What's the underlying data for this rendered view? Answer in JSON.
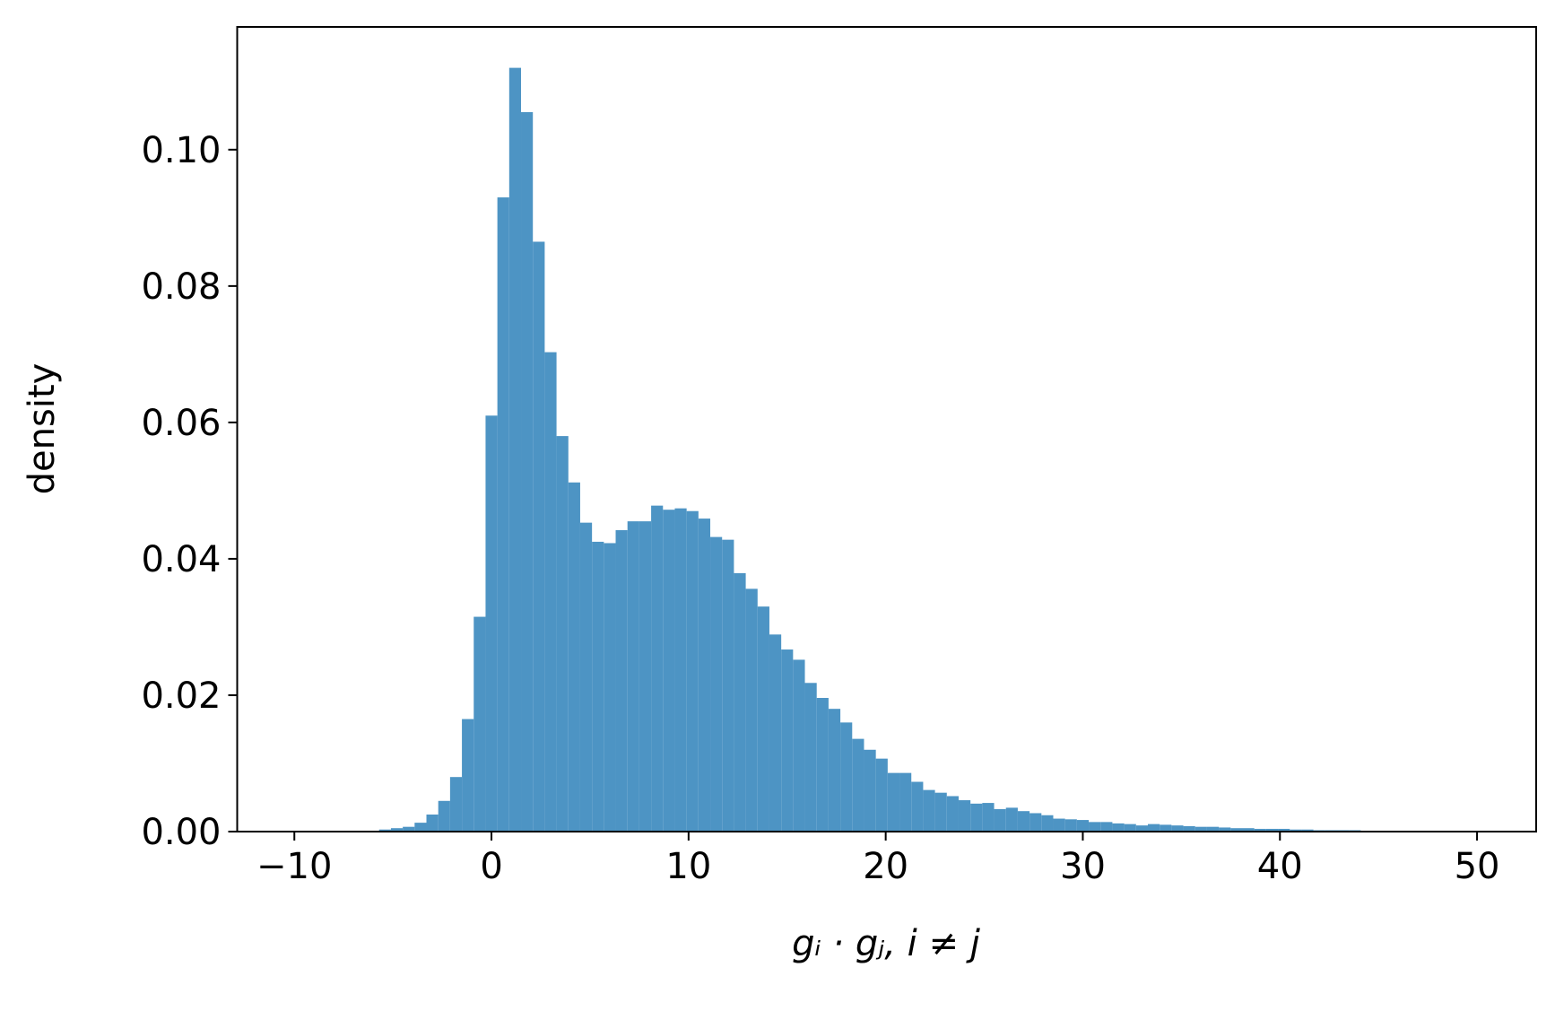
{
  "chart_data": {
    "type": "histogram",
    "xlabel": "gᵢ · gⱼ, i ≠ j",
    "ylabel": "density",
    "color": "#4d94c4",
    "bins": [
      -9.9,
      -9.3,
      -8.7,
      -8.1,
      -7.5,
      -6.9,
      -6.3,
      -5.7,
      -5.1,
      -4.5,
      -3.9,
      -3.3,
      -2.7,
      -2.1,
      -1.5,
      -0.9,
      -0.3,
      0.3,
      0.9,
      1.5,
      2.1,
      2.7,
      3.3,
      3.9,
      4.5,
      5.1,
      5.7,
      6.3,
      6.9,
      7.5,
      8.1,
      8.7,
      9.3,
      9.9,
      10.5,
      11.1,
      11.7,
      12.3,
      12.9,
      13.5,
      14.1,
      14.7,
      15.3,
      15.9,
      16.5,
      17.1,
      17.7,
      18.3,
      18.9,
      19.5,
      20.1,
      20.7,
      21.3,
      21.9,
      22.5,
      23.1,
      23.7,
      24.3,
      24.9,
      25.5,
      26.1,
      26.7,
      27.3,
      27.9,
      28.5,
      29.1,
      29.7,
      30.3,
      30.9,
      31.5,
      32.1,
      32.7,
      33.3,
      33.9,
      34.5,
      35.1,
      35.7,
      36.3,
      36.9,
      37.5,
      38.1,
      38.7,
      39.3,
      39.9,
      40.5,
      41.1,
      41.7,
      42.3,
      42.9,
      43.5,
      44.1,
      44.7,
      45.3,
      45.9,
      46.5,
      47.1,
      47.7,
      48.3,
      48.9,
      49.5,
      50.1
    ],
    "values": [
      0,
      0,
      0,
      0,
      0,
      0,
      0.0001,
      0.0003,
      0.0005,
      0.0007,
      0.0013,
      0.0025,
      0.0045,
      0.008,
      0.0165,
      0.0315,
      0.061,
      0.093,
      0.112,
      0.1055,
      0.0865,
      0.0703,
      0.058,
      0.0512,
      0.0453,
      0.0425,
      0.0423,
      0.0442,
      0.0455,
      0.0455,
      0.0478,
      0.0472,
      0.0474,
      0.047,
      0.0459,
      0.0432,
      0.0428,
      0.0379,
      0.0356,
      0.033,
      0.0289,
      0.0267,
      0.0252,
      0.0218,
      0.0196,
      0.018,
      0.016,
      0.0136,
      0.012,
      0.0107,
      0.0086,
      0.0086,
      0.0073,
      0.0061,
      0.0057,
      0.0052,
      0.0046,
      0.0041,
      0.0042,
      0.0033,
      0.0035,
      0.003,
      0.0027,
      0.0024,
      0.0019,
      0.0018,
      0.0017,
      0.0014,
      0.0014,
      0.0012,
      0.0011,
      0.0009,
      0.0011,
      0.001,
      0.0009,
      0.0008,
      0.0007,
      0.0007,
      0.0006,
      0.0005,
      0.0005,
      0.0004,
      0.0004,
      0.0004,
      0.0003,
      0.0003,
      0.0002,
      0.0002,
      0.0002,
      0.0002,
      0.0001,
      0.0001,
      0.0001,
      0.0001,
      0.0001,
      0.0001,
      0,
      0,
      0,
      0
    ],
    "xlim": [
      -12.9,
      53.0
    ],
    "ylim": [
      0,
      0.118
    ],
    "xticks": [
      {
        "value": -10,
        "label": "−10"
      },
      0,
      10,
      20,
      30,
      40,
      50
    ],
    "yticks": [
      {
        "value": 0,
        "label": "0.00"
      },
      0.02,
      0.04,
      0.06,
      0.08,
      {
        "value": 0.1,
        "label": "0.10"
      }
    ]
  }
}
